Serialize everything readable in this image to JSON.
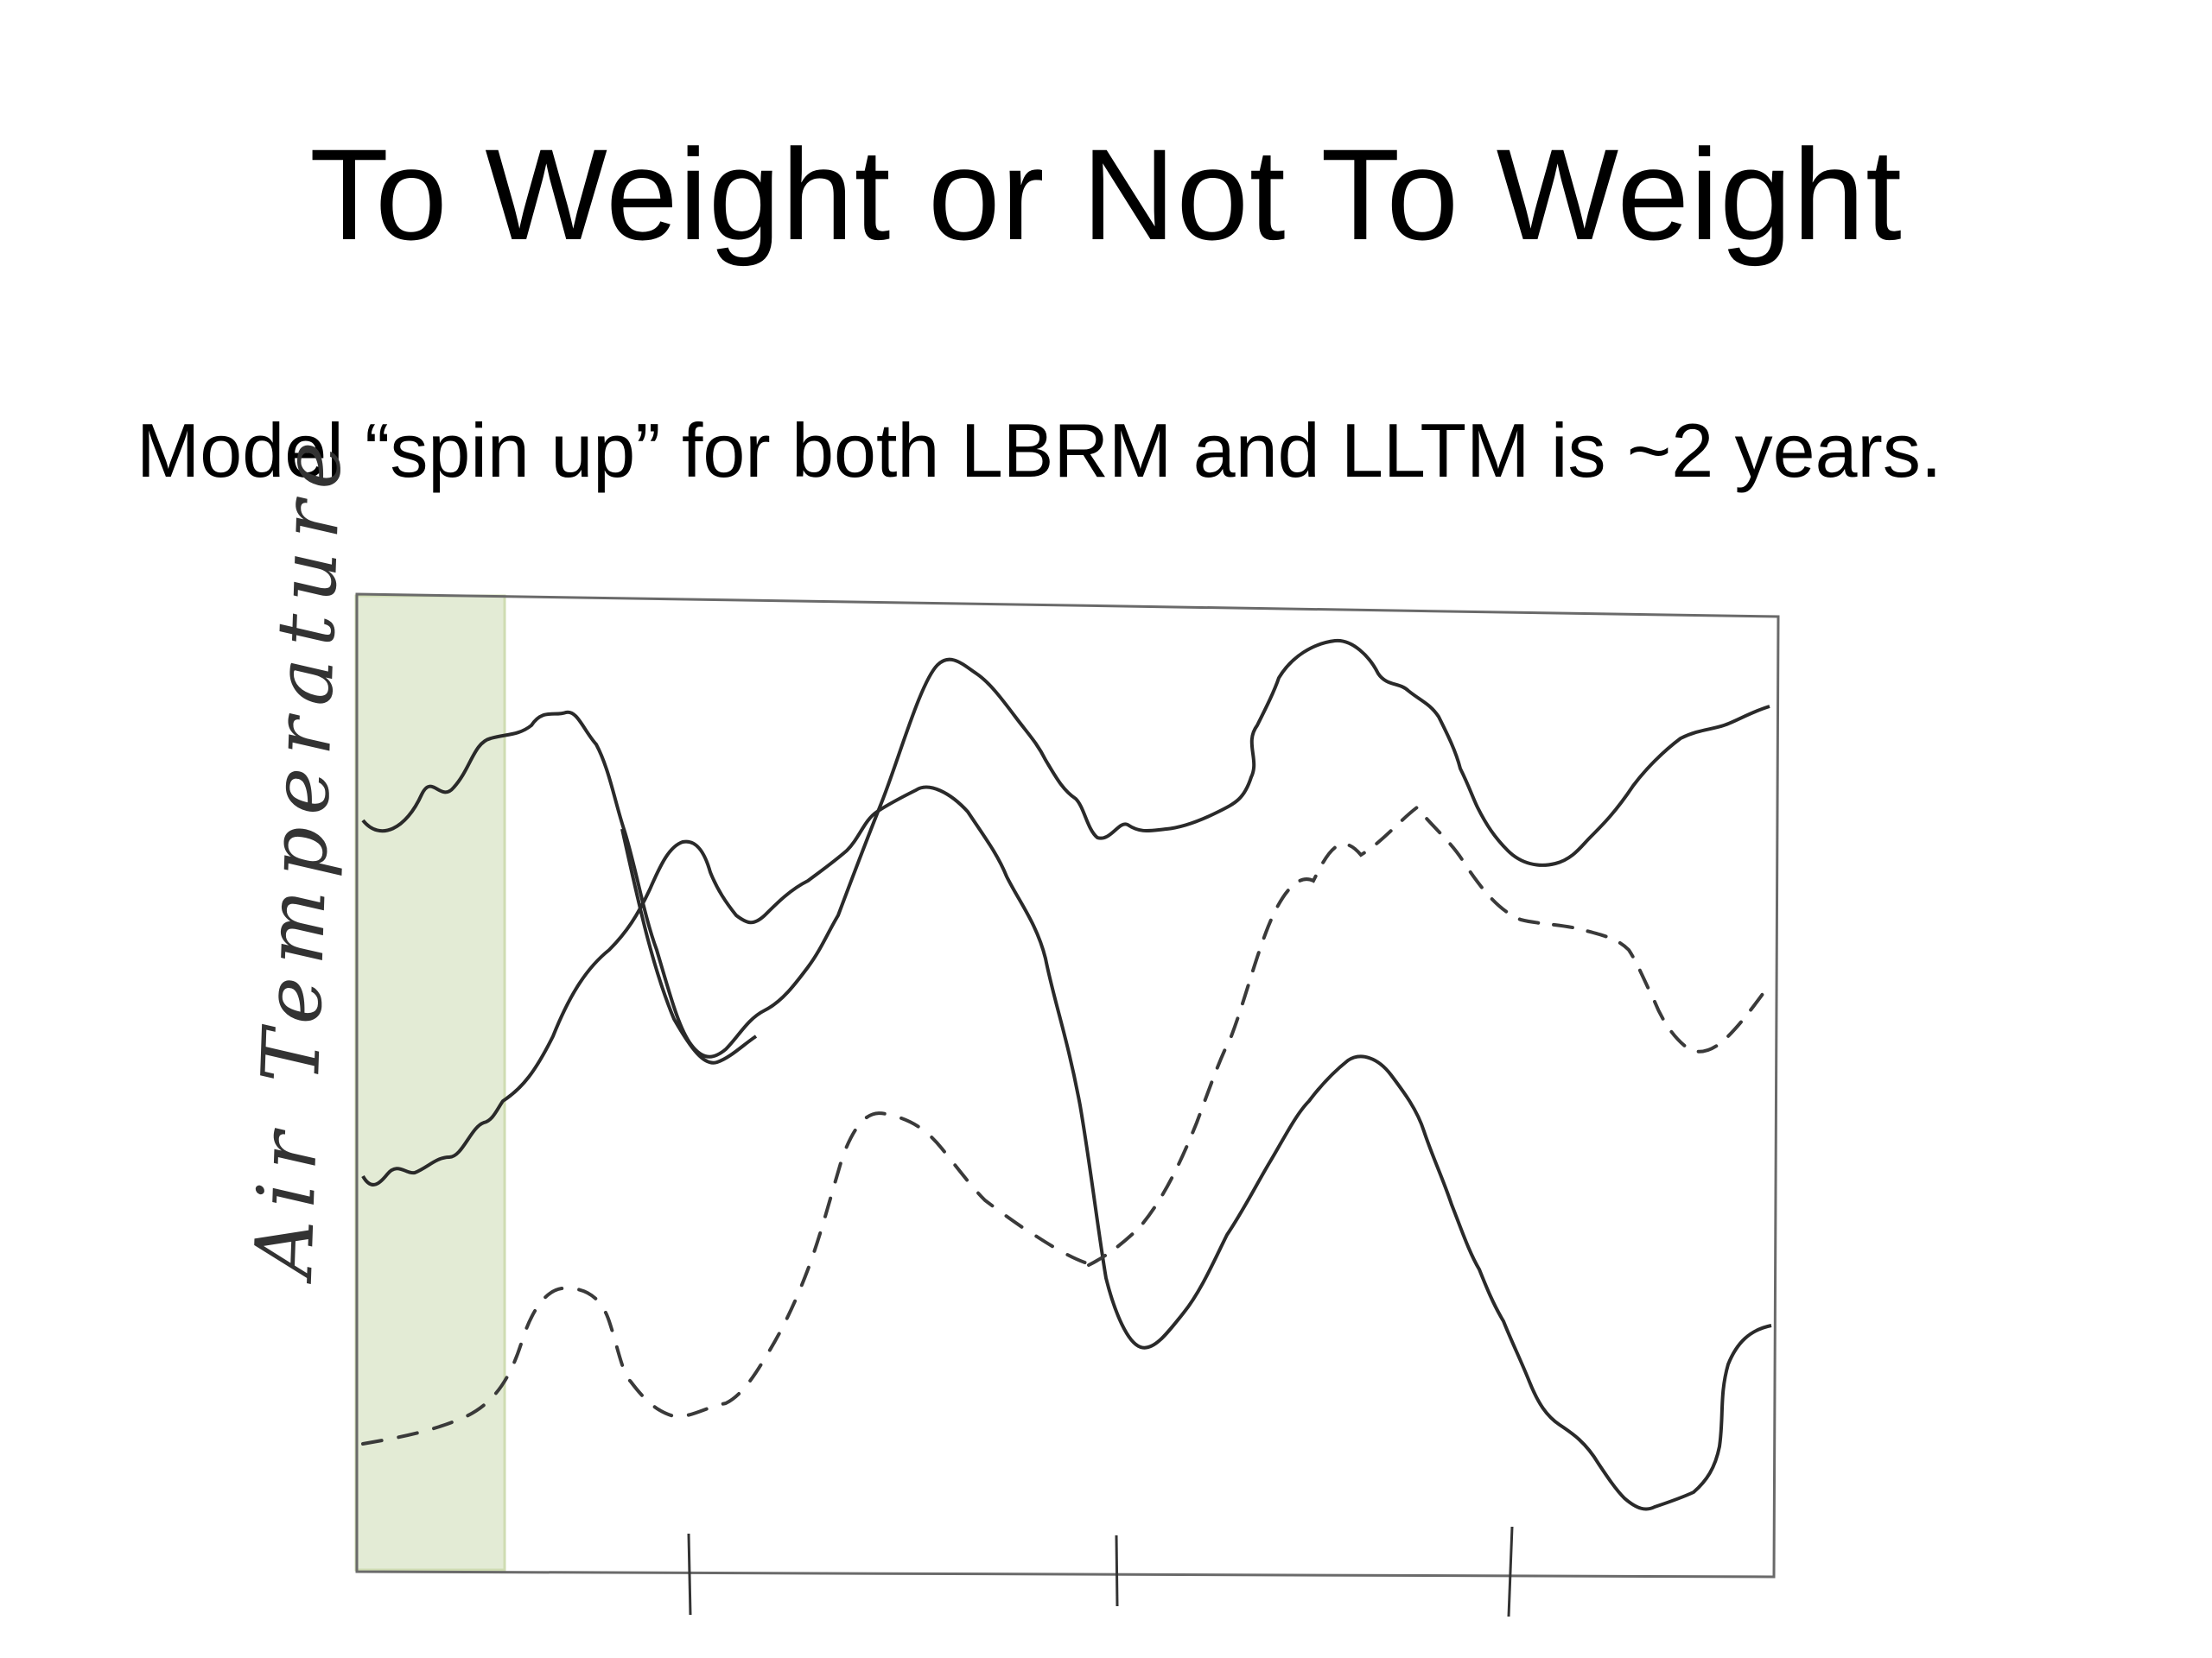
{
  "slide": {
    "title": "To Weight or Not To Weight",
    "subtitle": "Model “spin up” for both LBRM and LLTM is ~2 years."
  },
  "sketch": {
    "y_axis_label": "Air Temperature",
    "colors": {
      "highlight": "#e3ebd5",
      "highlight_edge": "#cfdcb2",
      "ink": "#2a2a2a"
    }
  }
}
